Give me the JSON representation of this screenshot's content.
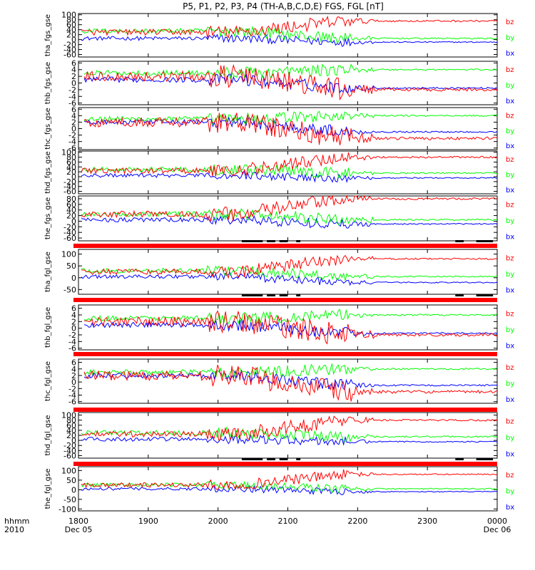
{
  "chart_data": {
    "type": "line",
    "title": "P5, P1, P2, P3, P4 (TH-A,B,C,D,E) FGS, FGL [nT]",
    "colors": {
      "bx": "#0000ff",
      "by": "#00ff00",
      "bz": "#ff0000",
      "bar": "#ff0000",
      "axis": "#000000"
    },
    "x_axis": {
      "ticks": [
        "1800",
        "1900",
        "2000",
        "2100",
        "2200",
        "2300",
        "0000"
      ],
      "left_sub": "Dec 05",
      "right_sub": "Dec 06",
      "label_line1": "hhmm",
      "label_line2": "2010"
    },
    "series_names": [
      "bz",
      "by",
      "bx"
    ],
    "panels": [
      {
        "ylabel": "tha_fgs_gse",
        "yticks": [
          100,
          80,
          60,
          40,
          20,
          0,
          -20,
          -40,
          -60
        ],
        "ylim": [
          -70,
          105
        ],
        "style": "big",
        "bar": "none",
        "series": {
          "bz": {
            "start": 30,
            "level": 75,
            "noise": 12
          },
          "by": {
            "start": 35,
            "level": 5,
            "noise": 10
          },
          "bx": {
            "start": 5,
            "level": -10,
            "noise": 8
          }
        }
      },
      {
        "ylabel": "thb_fgs_gse",
        "yticks": [
          6,
          4,
          2,
          0,
          -2,
          -4,
          -6
        ],
        "ylim": [
          -6.5,
          6.5
        ],
        "style": "small",
        "bar": "none",
        "series": {
          "bz": {
            "start": 2,
            "level": -2,
            "noise": 1.5
          },
          "by": {
            "start": 3,
            "level": 4,
            "noise": 0.8
          },
          "bx": {
            "start": 1,
            "level": -1.5,
            "noise": 0.8
          }
        }
      },
      {
        "ylabel": "thc_fgs_gse",
        "yticks": [
          6,
          4,
          2,
          0,
          -2,
          -4,
          -6
        ],
        "ylim": [
          -6.5,
          6.5
        ],
        "style": "small",
        "bar": "none",
        "series": {
          "bz": {
            "start": 2,
            "level": -3,
            "noise": 1.5
          },
          "by": {
            "start": 3,
            "level": 4,
            "noise": 0.8
          },
          "bx": {
            "start": 2,
            "level": -1,
            "noise": 0.8
          }
        }
      },
      {
        "ylabel": "thd_fgs_gse",
        "yticks": [
          100,
          80,
          60,
          40,
          20,
          0,
          -20,
          -40,
          -60
        ],
        "ylim": [
          -70,
          105
        ],
        "style": "big",
        "bar": "none",
        "series": {
          "bz": {
            "start": 25,
            "level": 80,
            "noise": 12
          },
          "by": {
            "start": 30,
            "level": 15,
            "noise": 10
          },
          "bx": {
            "start": 5,
            "level": -5,
            "noise": 8
          }
        }
      },
      {
        "ylabel": "the_fgs_gse",
        "yticks": [
          80,
          60,
          40,
          20,
          0,
          -20,
          -40,
          -60
        ],
        "ylim": [
          -70,
          90
        ],
        "style": "big",
        "bar": "marks",
        "series": {
          "bz": {
            "start": 25,
            "level": 80,
            "noise": 12
          },
          "by": {
            "start": 25,
            "level": 5,
            "noise": 10
          },
          "bx": {
            "start": 5,
            "level": -10,
            "noise": 8
          }
        }
      },
      {
        "ylabel": "tha_fgl_gse",
        "yticks": [
          100,
          50,
          0,
          -50
        ],
        "ylim": [
          -70,
          120
        ],
        "style": "big",
        "bar": "marks",
        "series": {
          "bz": {
            "start": 25,
            "level": 80,
            "noise": 12
          },
          "by": {
            "start": 30,
            "level": 5,
            "noise": 10
          },
          "bx": {
            "start": 5,
            "level": -20,
            "noise": 8
          }
        }
      },
      {
        "ylabel": "thb_fgl_gse",
        "yticks": [
          6,
          4,
          2,
          0,
          -2,
          -4,
          -6
        ],
        "ylim": [
          -6.5,
          7
        ],
        "style": "small",
        "bar": "solid",
        "series": {
          "bz": {
            "start": 2,
            "level": -2,
            "noise": 1.5
          },
          "by": {
            "start": 3,
            "level": 4,
            "noise": 0.8
          },
          "bx": {
            "start": 1,
            "level": -1.5,
            "noise": 0.8
          }
        }
      },
      {
        "ylabel": "thc_fgl_gse",
        "yticks": [
          6,
          4,
          2,
          0,
          -2,
          -4,
          -6
        ],
        "ylim": [
          -6.5,
          7
        ],
        "style": "small",
        "bar": "solid",
        "series": {
          "bz": {
            "start": 2,
            "level": -3,
            "noise": 1.5
          },
          "by": {
            "start": 3,
            "level": 4,
            "noise": 0.8
          },
          "bx": {
            "start": 2,
            "level": -1,
            "noise": 0.8
          }
        }
      },
      {
        "ylabel": "thd_fgl_gse",
        "yticks": [
          100,
          80,
          60,
          40,
          20,
          0,
          -20,
          -40,
          -60
        ],
        "ylim": [
          -70,
          110
        ],
        "style": "big",
        "bar": "marks",
        "series": {
          "bz": {
            "start": 25,
            "level": 80,
            "noise": 12
          },
          "by": {
            "start": 30,
            "level": 15,
            "noise": 10
          },
          "bx": {
            "start": 5,
            "level": -5,
            "noise": 8
          }
        }
      },
      {
        "ylabel": "the_fgl_gse",
        "yticks": [
          100,
          50,
          0,
          -50,
          -100
        ],
        "ylim": [
          -110,
          120
        ],
        "style": "big",
        "bar": "marks",
        "series": {
          "bz": {
            "start": 25,
            "level": 80,
            "noise": 12
          },
          "by": {
            "start": 25,
            "level": 5,
            "noise": 10
          },
          "bx": {
            "start": 5,
            "level": -10,
            "noise": 8
          }
        }
      }
    ]
  }
}
